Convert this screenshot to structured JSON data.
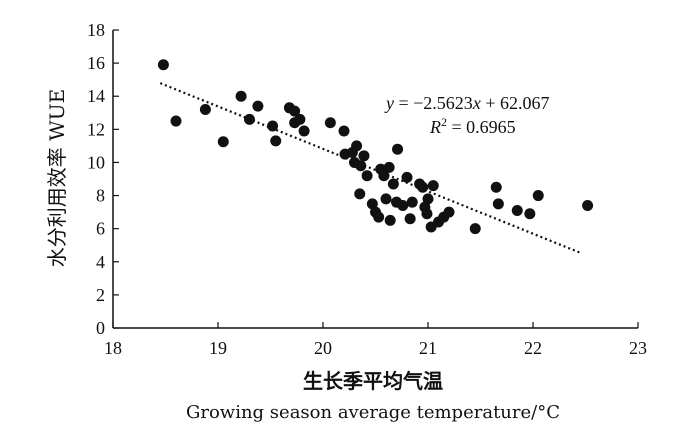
{
  "chart_data": {
    "type": "scatter",
    "xlabel": "生长季平均气温",
    "xlabel_en": "Growing season average temperature/°C",
    "ylabel": "水分利用效率 WUE",
    "xlim": [
      18,
      23
    ],
    "ylim": [
      0,
      18
    ],
    "xticks": [
      18,
      19,
      20,
      21,
      22,
      23
    ],
    "yticks": [
      0,
      2,
      4,
      6,
      8,
      10,
      12,
      14,
      16,
      18
    ],
    "grid": false,
    "points": [
      [
        18.48,
        15.9
      ],
      [
        18.6,
        12.5
      ],
      [
        18.88,
        13.2
      ],
      [
        19.05,
        11.25
      ],
      [
        19.22,
        14.0
      ],
      [
        19.3,
        12.6
      ],
      [
        19.38,
        13.4
      ],
      [
        19.52,
        12.2
      ],
      [
        19.55,
        11.3
      ],
      [
        19.68,
        13.3
      ],
      [
        19.73,
        12.4
      ],
      [
        19.73,
        13.1
      ],
      [
        19.78,
        12.6
      ],
      [
        19.82,
        11.9
      ],
      [
        20.07,
        12.4
      ],
      [
        20.2,
        11.9
      ],
      [
        20.21,
        10.5
      ],
      [
        20.28,
        10.6
      ],
      [
        20.3,
        10.0
      ],
      [
        20.32,
        11.0
      ],
      [
        20.35,
        8.1
      ],
      [
        20.36,
        9.8
      ],
      [
        20.39,
        10.4
      ],
      [
        20.42,
        9.2
      ],
      [
        20.47,
        7.5
      ],
      [
        20.5,
        7.0
      ],
      [
        20.53,
        6.7
      ],
      [
        20.55,
        9.6
      ],
      [
        20.58,
        9.2
      ],
      [
        20.6,
        7.8
      ],
      [
        20.63,
        9.7
      ],
      [
        20.64,
        6.5
      ],
      [
        20.67,
        8.7
      ],
      [
        20.7,
        7.6
      ],
      [
        20.71,
        10.8
      ],
      [
        20.76,
        7.4
      ],
      [
        20.8,
        9.1
      ],
      [
        20.83,
        6.6
      ],
      [
        20.85,
        7.6
      ],
      [
        20.92,
        8.7
      ],
      [
        20.95,
        8.5
      ],
      [
        20.97,
        7.3
      ],
      [
        20.99,
        6.9
      ],
      [
        21.0,
        7.8
      ],
      [
        21.03,
        6.1
      ],
      [
        21.05,
        8.6
      ],
      [
        21.1,
        6.4
      ],
      [
        21.15,
        6.7
      ],
      [
        21.2,
        7.0
      ],
      [
        21.45,
        6.0
      ],
      [
        21.65,
        8.5
      ],
      [
        21.67,
        7.5
      ],
      [
        21.85,
        7.1
      ],
      [
        21.97,
        6.9
      ],
      [
        22.05,
        8.0
      ],
      [
        22.52,
        7.4
      ]
    ],
    "trendline": {
      "slope": -2.5623,
      "intercept": 62.067,
      "x_range": [
        18.45,
        22.45
      ],
      "style": "dotted"
    },
    "equation_text": {
      "y": "y",
      "eq_rest": " = −2.5623",
      "x": "x",
      "eq_tail": " + 62.067",
      "r": "R",
      "r_sup": "2",
      "r_rest": " = 0.6965"
    }
  }
}
